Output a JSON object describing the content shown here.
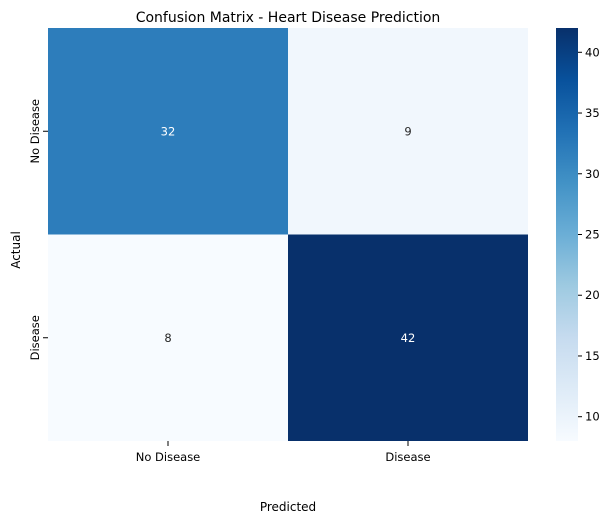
{
  "chart_data": {
    "type": "heatmap",
    "title": "Confusion Matrix - Heart Disease Prediction",
    "xlabel": "Predicted",
    "ylabel": "Actual",
    "x_categories": [
      "No Disease",
      "Disease"
    ],
    "y_categories": [
      "No Disease",
      "Disease"
    ],
    "values": [
      [
        32,
        9
      ],
      [
        8,
        42
      ]
    ],
    "colormap": "Blues",
    "color_range": [
      8,
      42
    ],
    "colorbar_ticks": [
      10,
      15,
      20,
      25,
      30,
      35,
      40
    ],
    "annotated": true
  }
}
